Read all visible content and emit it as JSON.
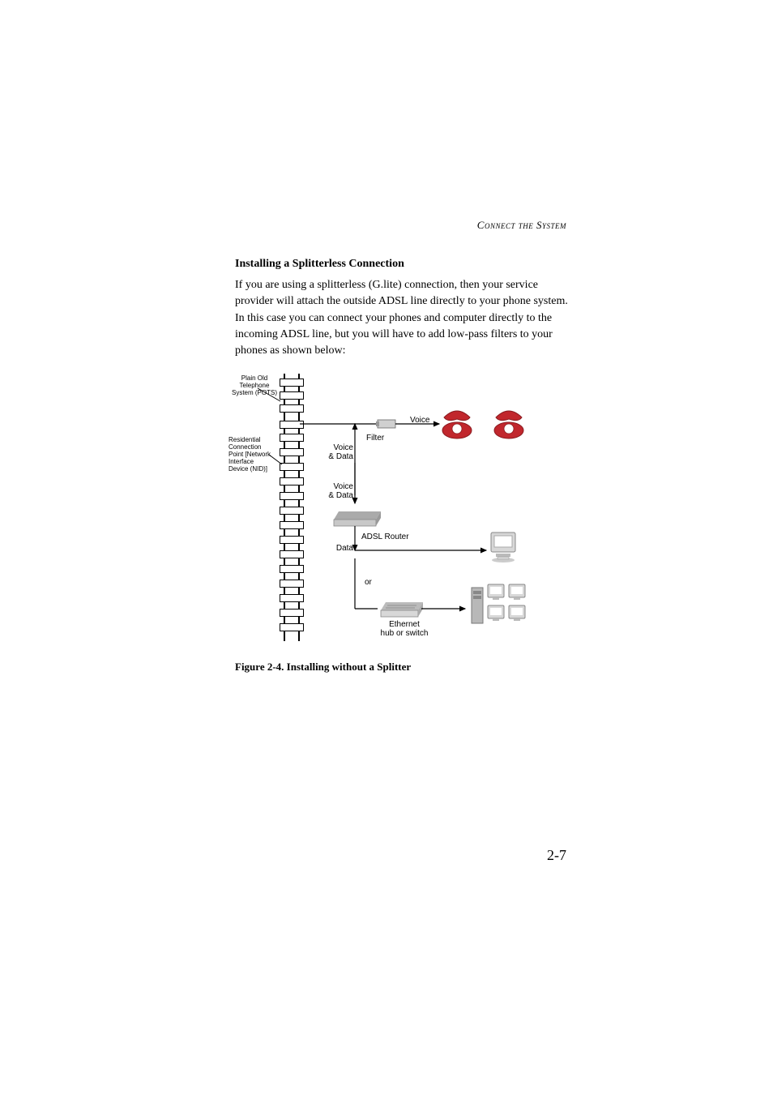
{
  "header": "Connect the System",
  "section_title": "Installing a Splitterless Connection",
  "paragraph": "If you are using a splitterless (G.lite) connection, then your service provider will attach the outside ADSL line directly to your phone system. In this case you can connect your phones and computer directly to the incoming ADSL line, but you will have to add low-pass filters to your phones as shown below:",
  "figure_caption": "Figure 2-4.  Installing without a Splitter",
  "page_number": "2-7",
  "diagram": {
    "labels": {
      "pots": "Plain Old\nTelephone\nSystem (POTS)",
      "nid": "Residential\nConnection\nPoint [Network\nInterface\nDevice (NID)]",
      "voice_data_1": "Voice\n& Data",
      "voice_data_2": "Voice\n& Data",
      "voice": "Voice",
      "filter": "Filter",
      "data": "Data",
      "adsl_router": "ADSL Router",
      "or": "or",
      "ethernet": "Ethernet\nhub or switch"
    },
    "colors": {
      "phone": "#c1272d",
      "phone_dark": "#8a1a1f",
      "router": "#c8c8c8",
      "router_shadow": "#888888",
      "computer_body": "#d8d8d8",
      "computer_screen": "#ffffff",
      "filter_body": "#d0d0d0",
      "pole": "#000000",
      "line": "#000000"
    }
  }
}
